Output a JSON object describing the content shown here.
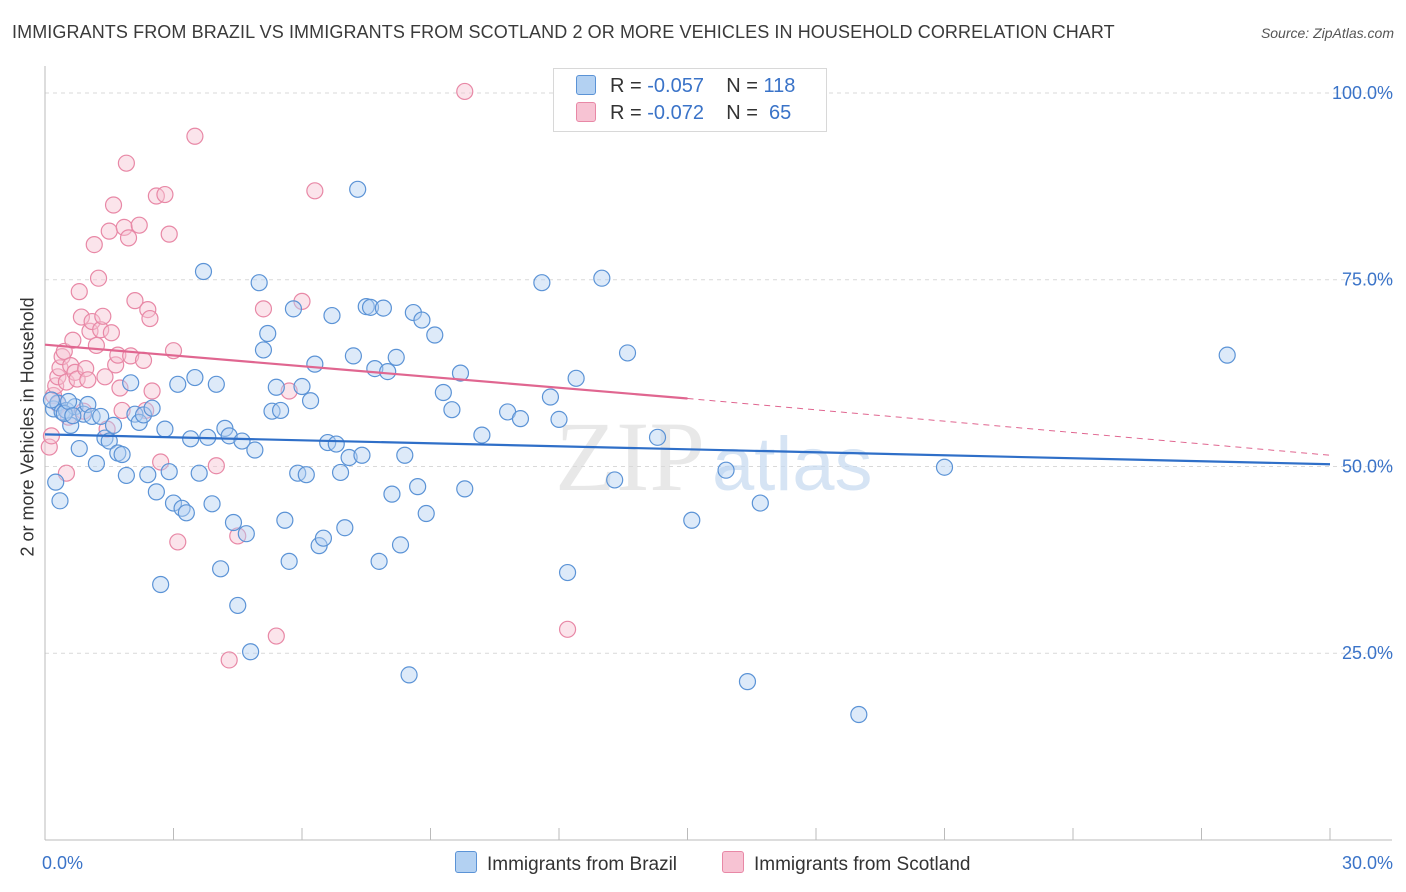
{
  "title": "IMMIGRANTS FROM BRAZIL VS IMMIGRANTS FROM SCOTLAND 2 OR MORE VEHICLES IN HOUSEHOLD CORRELATION CHART",
  "source": "Source: ZipAtlas.com",
  "legend": {
    "brazil": {
      "r_label": "R =",
      "r_value": "-0.057",
      "n_label": "N =",
      "n_value": "118"
    },
    "scotland": {
      "r_label": "R =",
      "r_value": "-0.072",
      "n_label": "N =",
      "n_value": "65"
    }
  },
  "colors": {
    "brazil_fill": "#b3d1f2",
    "brazil_stroke": "#5b93d6",
    "brazil_line": "#2f6fc8",
    "scotland_fill": "#f7c3d3",
    "scotland_stroke": "#e888a6",
    "scotland_line": "#e06690",
    "tick_label": "#3a73c8",
    "grid": "#d9d9d9"
  },
  "watermark": {
    "zip": "ZIP",
    "atlas": "atlas"
  },
  "chart_data": {
    "type": "scatter",
    "title": "IMMIGRANTS FROM BRAZIL VS IMMIGRANTS FROM SCOTLAND 2 OR MORE VEHICLES IN HOUSEHOLD CORRELATION CHART",
    "xlabel": "",
    "ylabel": "2 or more Vehicles in Household",
    "xlim": [
      0,
      30
    ],
    "ylim": [
      0,
      102
    ],
    "x_tick_labels": [
      "0.0%",
      "30.0%"
    ],
    "y_ticks": [
      25,
      50,
      75,
      100
    ],
    "y_tick_labels": [
      "25.0%",
      "50.0%",
      "75.0%",
      "100.0%"
    ],
    "legend_position": "top-center",
    "series": [
      {
        "name": "Immigrants from Brazil",
        "r": -0.057,
        "n": 118,
        "trend": {
          "x": [
            0,
            30
          ],
          "y": [
            54.3,
            50.3
          ]
        },
        "points": [
          [
            0.2,
            57.7
          ],
          [
            0.3,
            58.5
          ],
          [
            0.4,
            57.3
          ],
          [
            0.5,
            57.5
          ],
          [
            0.6,
            55.5
          ],
          [
            0.7,
            58.0
          ],
          [
            0.8,
            52.4
          ],
          [
            0.9,
            57.0
          ],
          [
            1.0,
            58.3
          ],
          [
            1.1,
            56.7
          ],
          [
            1.2,
            50.4
          ],
          [
            1.3,
            56.7
          ],
          [
            1.4,
            53.8
          ],
          [
            1.5,
            53.4
          ],
          [
            1.6,
            55.5
          ],
          [
            1.7,
            51.8
          ],
          [
            1.8,
            51.6
          ],
          [
            1.9,
            48.8
          ],
          [
            2.0,
            61.2
          ],
          [
            2.1,
            57.0
          ],
          [
            2.2,
            55.9
          ],
          [
            2.3,
            56.9
          ],
          [
            2.4,
            48.9
          ],
          [
            2.5,
            57.8
          ],
          [
            2.6,
            46.6
          ],
          [
            2.7,
            34.2
          ],
          [
            2.8,
            55.0
          ],
          [
            2.9,
            49.3
          ],
          [
            3.0,
            45.1
          ],
          [
            3.1,
            61.0
          ],
          [
            3.2,
            44.4
          ],
          [
            3.3,
            43.8
          ],
          [
            3.4,
            53.7
          ],
          [
            3.5,
            61.9
          ],
          [
            3.6,
            49.1
          ],
          [
            3.7,
            76.1
          ],
          [
            3.8,
            53.9
          ],
          [
            3.9,
            45.0
          ],
          [
            4.0,
            61.0
          ],
          [
            4.1,
            36.3
          ],
          [
            4.2,
            55.1
          ],
          [
            4.3,
            54.1
          ],
          [
            4.4,
            42.5
          ],
          [
            4.5,
            31.4
          ],
          [
            4.6,
            53.4
          ],
          [
            4.7,
            41.0
          ],
          [
            4.8,
            25.2
          ],
          [
            4.9,
            52.2
          ],
          [
            5.0,
            74.6
          ],
          [
            5.1,
            65.6
          ],
          [
            5.2,
            67.8
          ],
          [
            5.3,
            57.4
          ],
          [
            5.4,
            60.6
          ],
          [
            5.5,
            57.5
          ],
          [
            5.6,
            42.8
          ],
          [
            5.7,
            37.3
          ],
          [
            5.8,
            71.1
          ],
          [
            5.9,
            49.1
          ],
          [
            6.0,
            60.7
          ],
          [
            6.1,
            48.9
          ],
          [
            6.2,
            58.8
          ],
          [
            6.3,
            63.7
          ],
          [
            6.4,
            39.4
          ],
          [
            6.5,
            40.4
          ],
          [
            6.6,
            53.2
          ],
          [
            6.7,
            70.2
          ],
          [
            6.8,
            53.0
          ],
          [
            6.9,
            49.2
          ],
          [
            7.0,
            41.8
          ],
          [
            7.1,
            51.2
          ],
          [
            7.2,
            64.8
          ],
          [
            7.3,
            87.1
          ],
          [
            7.4,
            51.5
          ],
          [
            7.5,
            71.4
          ],
          [
            7.6,
            71.3
          ],
          [
            7.7,
            63.1
          ],
          [
            7.8,
            37.3
          ],
          [
            7.9,
            71.2
          ],
          [
            8.0,
            62.7
          ],
          [
            8.1,
            46.3
          ],
          [
            8.2,
            64.6
          ],
          [
            8.3,
            39.5
          ],
          [
            8.4,
            51.5
          ],
          [
            8.5,
            22.1
          ],
          [
            8.6,
            70.6
          ],
          [
            8.7,
            47.3
          ],
          [
            8.8,
            69.6
          ],
          [
            8.9,
            43.7
          ],
          [
            9.1,
            67.6
          ],
          [
            9.3,
            59.9
          ],
          [
            9.5,
            57.6
          ],
          [
            9.7,
            62.5
          ],
          [
            9.8,
            47.0
          ],
          [
            10.2,
            54.2
          ],
          [
            10.8,
            57.3
          ],
          [
            11.1,
            56.4
          ],
          [
            11.6,
            74.6
          ],
          [
            11.8,
            59.3
          ],
          [
            12.0,
            56.3
          ],
          [
            12.2,
            35.8
          ],
          [
            12.4,
            61.8
          ],
          [
            13.0,
            75.2
          ],
          [
            13.3,
            48.2
          ],
          [
            13.6,
            65.2
          ],
          [
            14.3,
            53.9
          ],
          [
            15.1,
            42.8
          ],
          [
            15.9,
            49.5
          ],
          [
            16.4,
            21.2
          ],
          [
            16.7,
            45.1
          ],
          [
            19.0,
            16.8
          ],
          [
            21.0,
            49.9
          ],
          [
            27.6,
            64.9
          ],
          [
            0.15,
            58.9
          ],
          [
            0.25,
            47.9
          ],
          [
            0.35,
            45.4
          ],
          [
            0.45,
            57.1
          ],
          [
            0.55,
            58.7
          ],
          [
            0.65,
            56.8
          ]
        ]
      },
      {
        "name": "Immigrants from Scotland",
        "r": -0.072,
        "n": 65,
        "trend": {
          "x": [
            0,
            15,
            30
          ],
          "y": [
            66.3,
            59.1,
            51.5
          ]
        },
        "points": [
          [
            0.1,
            52.6
          ],
          [
            0.15,
            54.1
          ],
          [
            0.2,
            59.5
          ],
          [
            0.25,
            60.8
          ],
          [
            0.3,
            62.0
          ],
          [
            0.35,
            63.2
          ],
          [
            0.4,
            64.7
          ],
          [
            0.45,
            65.4
          ],
          [
            0.5,
            61.3
          ],
          [
            0.55,
            56.6
          ],
          [
            0.6,
            63.5
          ],
          [
            0.65,
            66.9
          ],
          [
            0.7,
            62.6
          ],
          [
            0.75,
            61.7
          ],
          [
            0.8,
            73.4
          ],
          [
            0.85,
            70.0
          ],
          [
            0.9,
            57.4
          ],
          [
            0.95,
            63.1
          ],
          [
            1.0,
            61.6
          ],
          [
            1.05,
            68.1
          ],
          [
            1.1,
            69.4
          ],
          [
            1.15,
            79.7
          ],
          [
            1.2,
            66.2
          ],
          [
            1.25,
            75.2
          ],
          [
            1.3,
            68.3
          ],
          [
            1.35,
            70.1
          ],
          [
            1.4,
            62.0
          ],
          [
            1.45,
            55.0
          ],
          [
            1.5,
            81.5
          ],
          [
            1.55,
            67.9
          ],
          [
            1.6,
            85.0
          ],
          [
            1.65,
            63.6
          ],
          [
            1.7,
            64.9
          ],
          [
            1.75,
            60.5
          ],
          [
            1.8,
            57.5
          ],
          [
            1.85,
            82.0
          ],
          [
            1.9,
            90.6
          ],
          [
            1.95,
            80.6
          ],
          [
            2.0,
            64.8
          ],
          [
            2.1,
            72.2
          ],
          [
            2.2,
            82.3
          ],
          [
            2.3,
            64.2
          ],
          [
            2.35,
            57.5
          ],
          [
            2.4,
            71.0
          ],
          [
            2.45,
            69.8
          ],
          [
            2.5,
            60.1
          ],
          [
            2.6,
            86.2
          ],
          [
            2.7,
            50.6
          ],
          [
            2.8,
            86.4
          ],
          [
            2.9,
            81.1
          ],
          [
            3.0,
            65.5
          ],
          [
            3.1,
            39.9
          ],
          [
            3.5,
            94.2
          ],
          [
            4.0,
            50.1
          ],
          [
            4.3,
            24.1
          ],
          [
            4.5,
            40.7
          ],
          [
            5.1,
            71.1
          ],
          [
            5.4,
            27.3
          ],
          [
            5.7,
            60.1
          ],
          [
            6.0,
            72.1
          ],
          [
            6.3,
            86.9
          ],
          [
            9.8,
            100.2
          ],
          [
            12.2,
            28.2
          ],
          [
            0.3,
            58.4
          ],
          [
            0.5,
            49.1
          ]
        ]
      }
    ]
  },
  "bottom_legend": [
    "Immigrants from Brazil",
    "Immigrants from Scotland"
  ]
}
